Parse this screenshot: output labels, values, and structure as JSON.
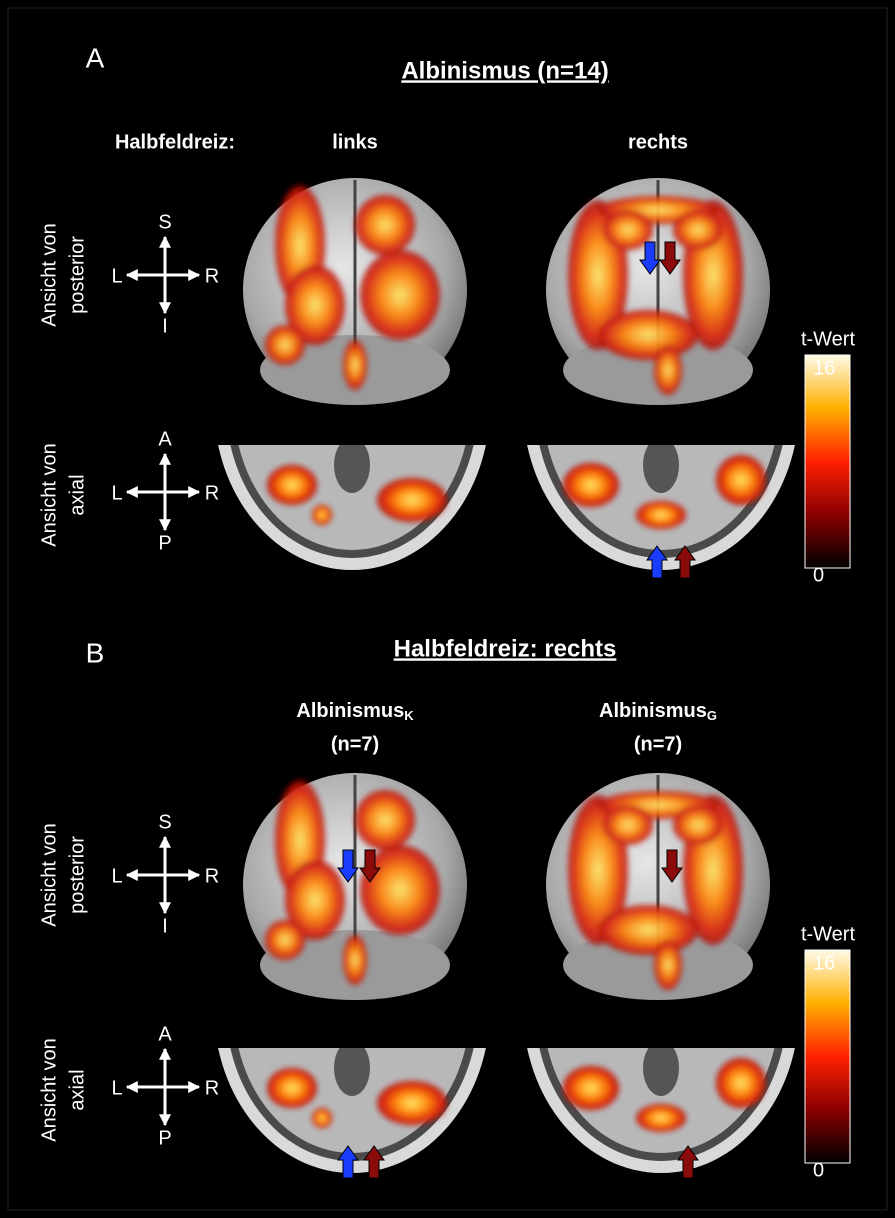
{
  "panels": [
    {
      "letter": "A",
      "title": "Albinismus (n=14)",
      "stimulus_label": "Halbfeldreiz:",
      "columns": [
        {
          "name": "links"
        },
        {
          "name": "rechts"
        }
      ],
      "rows": [
        {
          "lines": [
            "Ansicht von",
            "posterior"
          ],
          "orientation": [
            "S",
            "I",
            "L",
            "R"
          ]
        },
        {
          "lines": [
            "Ansicht von",
            "axial"
          ],
          "orientation": [
            "A",
            "P",
            "L",
            "R"
          ]
        }
      ],
      "colorbar": {
        "label": "t-Wert",
        "ticks": [
          16,
          0
        ]
      }
    },
    {
      "letter": "B",
      "title": "Halbfeldreiz: rechts",
      "columns": [
        {
          "name": "Albinismus",
          "subscript": "K",
          "n": "(n=7)"
        },
        {
          "name": "Albinismus",
          "subscript": "G",
          "n": "(n=7)"
        }
      ],
      "rows": [
        {
          "lines": [
            "Ansicht  von",
            "posterior"
          ],
          "orientation": [
            "S",
            "I",
            "L",
            "R"
          ]
        },
        {
          "lines": [
            "Ansicht von",
            "axial"
          ],
          "orientation": [
            "A",
            "P",
            "L",
            "R"
          ]
        }
      ],
      "colorbar": {
        "label": "t-Wert",
        "ticks": [
          16,
          0
        ]
      }
    }
  ]
}
